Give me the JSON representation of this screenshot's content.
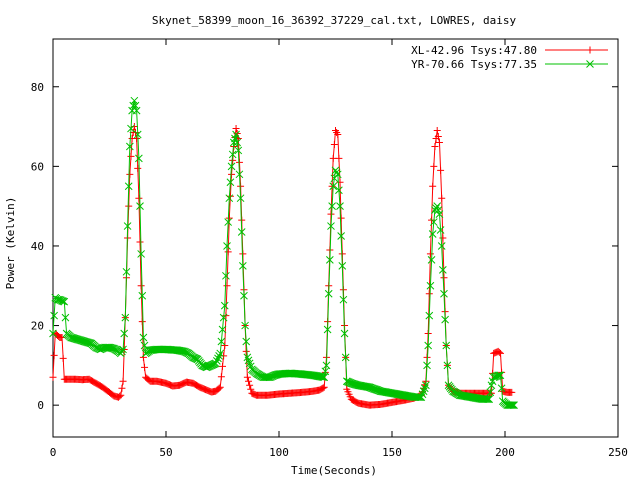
{
  "chart_data": {
    "type": "line",
    "title": "Skynet_58399_moon_16_36392_37229_cal.txt, LOWRES, daisy",
    "xlabel": "Time(Seconds)",
    "ylabel": "Power (Kelvin)",
    "xlim": [
      0,
      250
    ],
    "ylim": [
      -8,
      92
    ],
    "xticks": [
      0,
      50,
      100,
      150,
      200,
      250
    ],
    "yticks": [
      0,
      20,
      40,
      60,
      80
    ],
    "legend_position": "top-right",
    "grid": false,
    "series": [
      {
        "name": "XL-42.96 Tsys:47.80",
        "color": "#ff0000",
        "marker": "plus",
        "points": [
          [
            0,
            7
          ],
          [
            1,
            18
          ],
          [
            2,
            17.5
          ],
          [
            3,
            17
          ],
          [
            4,
            17
          ],
          [
            5,
            6.5
          ],
          [
            7,
            6.5
          ],
          [
            10,
            6.5
          ],
          [
            13,
            6.4
          ],
          [
            16,
            6.5
          ],
          [
            19,
            5.5
          ],
          [
            22,
            4.5
          ],
          [
            25,
            3.2
          ],
          [
            27,
            2.3
          ],
          [
            29,
            2
          ],
          [
            30,
            2.5
          ],
          [
            31,
            6
          ],
          [
            32,
            22
          ],
          [
            33,
            42
          ],
          [
            34,
            58
          ],
          [
            35,
            67
          ],
          [
            36,
            70
          ],
          [
            37,
            67
          ],
          [
            38,
            52
          ],
          [
            39,
            30
          ],
          [
            40,
            12
          ],
          [
            41,
            7
          ],
          [
            43,
            6
          ],
          [
            46,
            6
          ],
          [
            50,
            5.5
          ],
          [
            53,
            4.8
          ],
          [
            56,
            5
          ],
          [
            59,
            5.8
          ],
          [
            62,
            5.5
          ],
          [
            65,
            4.5
          ],
          [
            68,
            3.8
          ],
          [
            70,
            3.3
          ],
          [
            72,
            3.5
          ],
          [
            74,
            4.5
          ],
          [
            76,
            15
          ],
          [
            77,
            30
          ],
          [
            78,
            47
          ],
          [
            79,
            58
          ],
          [
            80,
            65
          ],
          [
            81,
            69.5
          ],
          [
            82,
            67
          ],
          [
            83,
            55
          ],
          [
            84,
            38
          ],
          [
            85,
            20
          ],
          [
            86,
            7
          ],
          [
            88,
            3
          ],
          [
            90,
            2.5
          ],
          [
            95,
            2.5
          ],
          [
            100,
            2.8
          ],
          [
            105,
            3
          ],
          [
            110,
            3.2
          ],
          [
            115,
            3.5
          ],
          [
            118,
            3.8
          ],
          [
            120,
            4.5
          ],
          [
            121,
            12
          ],
          [
            122,
            30
          ],
          [
            123,
            48
          ],
          [
            124,
            62
          ],
          [
            125,
            69
          ],
          [
            126,
            68
          ],
          [
            127,
            56
          ],
          [
            128,
            38
          ],
          [
            129,
            20
          ],
          [
            130,
            4
          ],
          [
            132,
            1.5
          ],
          [
            135,
            0.5
          ],
          [
            140,
            0
          ],
          [
            145,
            0.2
          ],
          [
            150,
            0.7
          ],
          [
            153,
            1
          ],
          [
            156,
            1.3
          ],
          [
            160,
            1.8
          ],
          [
            163,
            2.5
          ],
          [
            165,
            6
          ],
          [
            166,
            18
          ],
          [
            167,
            38
          ],
          [
            168,
            55
          ],
          [
            169,
            65
          ],
          [
            170,
            69
          ],
          [
            171,
            66
          ],
          [
            172,
            52
          ],
          [
            173,
            32
          ],
          [
            174,
            15
          ],
          [
            175,
            5
          ],
          [
            177,
            3.5
          ],
          [
            180,
            3
          ],
          [
            185,
            3
          ],
          [
            190,
            3
          ],
          [
            194,
            3
          ],
          [
            195,
            13
          ],
          [
            197,
            13.5
          ],
          [
            198,
            13
          ],
          [
            199,
            3.5
          ],
          [
            201,
            3.2
          ],
          [
            203,
            3.2
          ]
        ]
      },
      {
        "name": "YR-70.66 Tsys:77.35",
        "color": "#00c000",
        "marker": "x",
        "points": [
          [
            0,
            18
          ],
          [
            1,
            27
          ],
          [
            2,
            26.5
          ],
          [
            3,
            26.5
          ],
          [
            4,
            26.2
          ],
          [
            5,
            26
          ],
          [
            6,
            18
          ],
          [
            8,
            17
          ],
          [
            11,
            16.5
          ],
          [
            14,
            16
          ],
          [
            17,
            15.5
          ],
          [
            19,
            14.5
          ],
          [
            21,
            14
          ],
          [
            23,
            14.5
          ],
          [
            25,
            14.5
          ],
          [
            27,
            14.2
          ],
          [
            29,
            13.5
          ],
          [
            30,
            13
          ],
          [
            31,
            14
          ],
          [
            32,
            22
          ],
          [
            33,
            45
          ],
          [
            34,
            65
          ],
          [
            35,
            74
          ],
          [
            36,
            76.5
          ],
          [
            37,
            74
          ],
          [
            38,
            62
          ],
          [
            39,
            38
          ],
          [
            40,
            17
          ],
          [
            41,
            13
          ],
          [
            43,
            13.8
          ],
          [
            46,
            14
          ],
          [
            50,
            14
          ],
          [
            55,
            13.8
          ],
          [
            58,
            13.5
          ],
          [
            60,
            13
          ],
          [
            62,
            12
          ],
          [
            64,
            11.5
          ],
          [
            66,
            10
          ],
          [
            68,
            9.5
          ],
          [
            70,
            10
          ],
          [
            72,
            10.5
          ],
          [
            74,
            13
          ],
          [
            76,
            25
          ],
          [
            77,
            40
          ],
          [
            78,
            52
          ],
          [
            79,
            60
          ],
          [
            80,
            66
          ],
          [
            81,
            68
          ],
          [
            82,
            64
          ],
          [
            83,
            52
          ],
          [
            84,
            35
          ],
          [
            85,
            20
          ],
          [
            86,
            12
          ],
          [
            88,
            9
          ],
          [
            90,
            8
          ],
          [
            93,
            7
          ],
          [
            96,
            7
          ],
          [
            98,
            7.5
          ],
          [
            100,
            7.8
          ],
          [
            105,
            8
          ],
          [
            110,
            7.8
          ],
          [
            115,
            7.5
          ],
          [
            118,
            7.2
          ],
          [
            120,
            7
          ],
          [
            121,
            10
          ],
          [
            122,
            28
          ],
          [
            123,
            45
          ],
          [
            124,
            55
          ],
          [
            125,
            59
          ],
          [
            126,
            58
          ],
          [
            127,
            50
          ],
          [
            128,
            35
          ],
          [
            129,
            18
          ],
          [
            130,
            6
          ],
          [
            132,
            5.5
          ],
          [
            135,
            5
          ],
          [
            140,
            4.5
          ],
          [
            145,
            3.5
          ],
          [
            150,
            3
          ],
          [
            155,
            2.5
          ],
          [
            160,
            2
          ],
          [
            163,
            2
          ],
          [
            165,
            5
          ],
          [
            166,
            15
          ],
          [
            167,
            30
          ],
          [
            168,
            43
          ],
          [
            169,
            49
          ],
          [
            170,
            50
          ],
          [
            171,
            48
          ],
          [
            172,
            40
          ],
          [
            173,
            28
          ],
          [
            174,
            15
          ],
          [
            175,
            5
          ],
          [
            177,
            3.5
          ],
          [
            180,
            2.5
          ],
          [
            185,
            2
          ],
          [
            190,
            1.5
          ],
          [
            193,
            1.5
          ],
          [
            194,
            5
          ],
          [
            195,
            7
          ],
          [
            197,
            7.5
          ],
          [
            198,
            7.5
          ],
          [
            199,
            1
          ],
          [
            201,
            0
          ],
          [
            203,
            0
          ],
          [
            204,
            0
          ]
        ]
      }
    ]
  }
}
